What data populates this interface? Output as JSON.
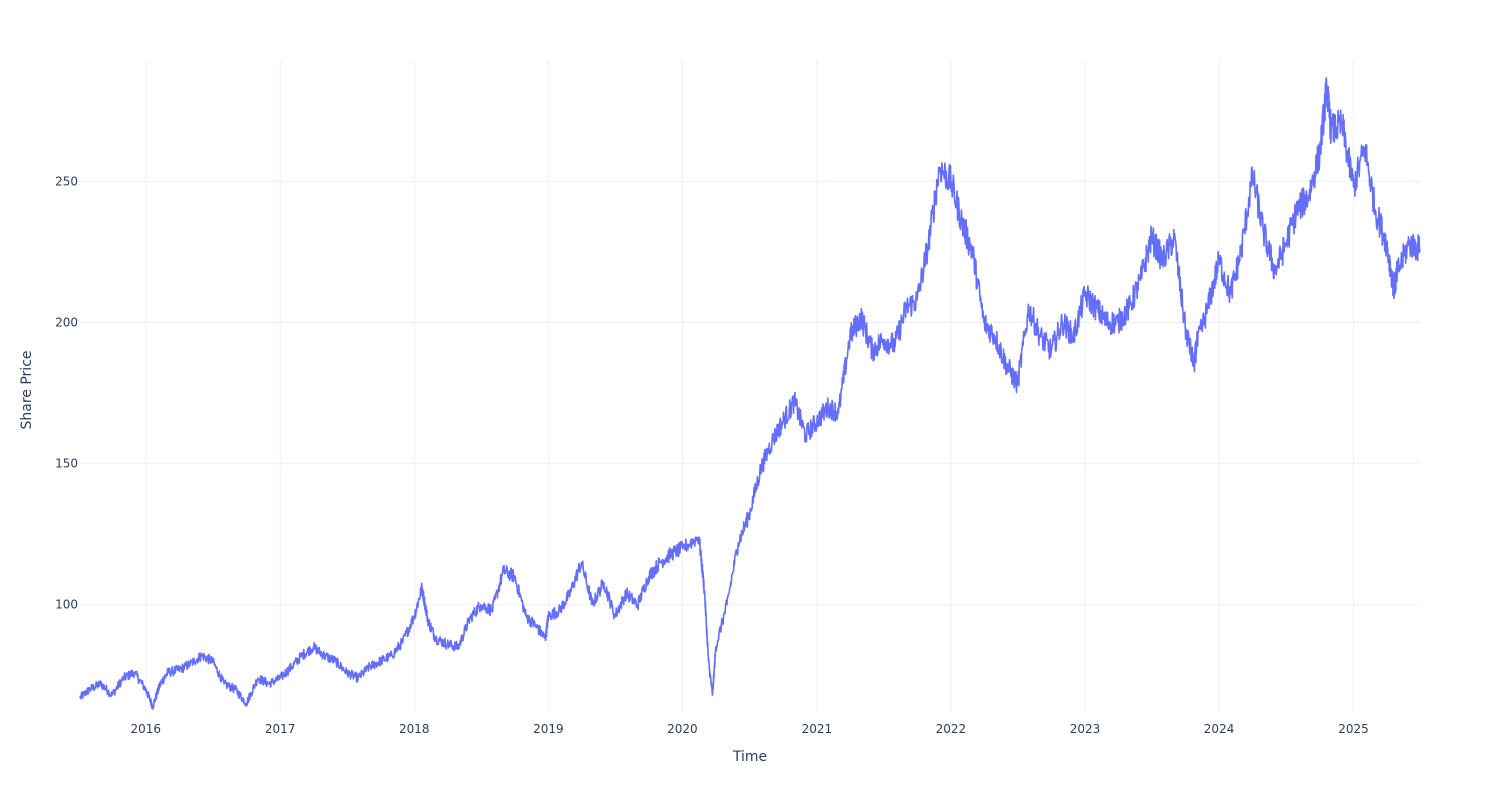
{
  "chart_data": {
    "type": "line",
    "title": "",
    "xlabel": "Time",
    "ylabel": "Share Price",
    "x_ticks": [
      "2016",
      "2017",
      "2018",
      "2019",
      "2020",
      "2021",
      "2022",
      "2023",
      "2024",
      "2025"
    ],
    "y_ticks": [
      100,
      150,
      200,
      250
    ],
    "xlim": [
      "2015-07-06",
      "2025-07-01"
    ],
    "ylim": [
      62,
      293
    ],
    "grid": true,
    "legend": "none",
    "colors": {
      "line": "#636efa",
      "grid": "#ebf0f8",
      "text": "#2a3f5f"
    },
    "series": [
      {
        "x": [
          "2015-07-06",
          "2015-08-01",
          "2015-09-01",
          "2015-10-01",
          "2015-11-01",
          "2015-12-01",
          "2016-01-01",
          "2016-01-20",
          "2016-02-10",
          "2016-03-01",
          "2016-04-01",
          "2016-05-01",
          "2016-06-01",
          "2016-07-01",
          "2016-08-01",
          "2016-09-01",
          "2016-10-01",
          "2016-11-01",
          "2016-12-01",
          "2017-01-01",
          "2017-02-01",
          "2017-03-01",
          "2017-04-01",
          "2017-05-01",
          "2017-06-01",
          "2017-07-01",
          "2017-08-01",
          "2017-09-01",
          "2017-10-01",
          "2017-11-01",
          "2017-12-01",
          "2018-01-01",
          "2018-01-22",
          "2018-02-08",
          "2018-03-01",
          "2018-04-01",
          "2018-05-01",
          "2018-06-01",
          "2018-07-01",
          "2018-08-01",
          "2018-09-01",
          "2018-10-01",
          "2018-11-01",
          "2018-12-01",
          "2018-12-24",
          "2019-01-01",
          "2019-02-01",
          "2019-03-01",
          "2019-04-01",
          "2019-05-01",
          "2019-06-01",
          "2019-07-01",
          "2019-08-01",
          "2019-09-01",
          "2019-10-01",
          "2019-11-01",
          "2019-12-01",
          "2020-01-01",
          "2020-02-15",
          "2020-03-01",
          "2020-03-12",
          "2020-03-23",
          "2020-04-01",
          "2020-05-01",
          "2020-06-01",
          "2020-07-01",
          "2020-08-01",
          "2020-09-01",
          "2020-10-01",
          "2020-11-01",
          "2020-12-01",
          "2021-01-01",
          "2021-02-01",
          "2021-03-01",
          "2021-04-01",
          "2021-05-01",
          "2021-06-01",
          "2021-07-01",
          "2021-08-01",
          "2021-09-01",
          "2021-10-01",
          "2021-11-01",
          "2021-12-01",
          "2022-01-01",
          "2022-02-01",
          "2022-03-01",
          "2022-04-01",
          "2022-05-01",
          "2022-06-01",
          "2022-07-01",
          "2022-08-01",
          "2022-09-01",
          "2022-10-01",
          "2022-11-01",
          "2022-12-01",
          "2023-01-01",
          "2023-02-01",
          "2023-03-01",
          "2023-04-01",
          "2023-05-01",
          "2023-06-01",
          "2023-07-01",
          "2023-08-01",
          "2023-09-01",
          "2023-10-01",
          "2023-10-25",
          "2023-11-01",
          "2023-12-01",
          "2024-01-01",
          "2024-02-01",
          "2024-03-01",
          "2024-04-01",
          "2024-05-01",
          "2024-06-01",
          "2024-07-01",
          "2024-08-01",
          "2024-09-01",
          "2024-10-01",
          "2024-10-20",
          "2024-11-01",
          "2024-12-01",
          "2025-01-01",
          "2025-02-01",
          "2025-03-01",
          "2025-04-01",
          "2025-04-21",
          "2025-05-01",
          "2025-06-01",
          "2025-07-01"
        ],
        "values": [
          67,
          70,
          72,
          68,
          74,
          76,
          70,
          64,
          72,
          76,
          77,
          79,
          82,
          80,
          72,
          70,
          65,
          74,
          72,
          74,
          78,
          82,
          85,
          82,
          80,
          76,
          74,
          78,
          80,
          82,
          87,
          96,
          106,
          94,
          88,
          86,
          85,
          95,
          100,
          98,
          112,
          110,
          96,
          92,
          88,
          96,
          98,
          104,
          115,
          100,
          108,
          96,
          104,
          100,
          110,
          115,
          118,
          120,
          124,
          105,
          80,
          68,
          85,
          100,
          122,
          132,
          148,
          158,
          165,
          172,
          160,
          165,
          170,
          168,
          195,
          202,
          190,
          194,
          192,
          205,
          208,
          228,
          255,
          250,
          235,
          225,
          200,
          195,
          185,
          178,
          205,
          195,
          190,
          200,
          195,
          210,
          205,
          200,
          200,
          205,
          215,
          230,
          222,
          230,
          198,
          185,
          192,
          205,
          222,
          210,
          225,
          252,
          232,
          218,
          228,
          240,
          245,
          260,
          283,
          268,
          270,
          248,
          262,
          240,
          228,
          212,
          218,
          228,
          226
        ]
      }
    ]
  }
}
